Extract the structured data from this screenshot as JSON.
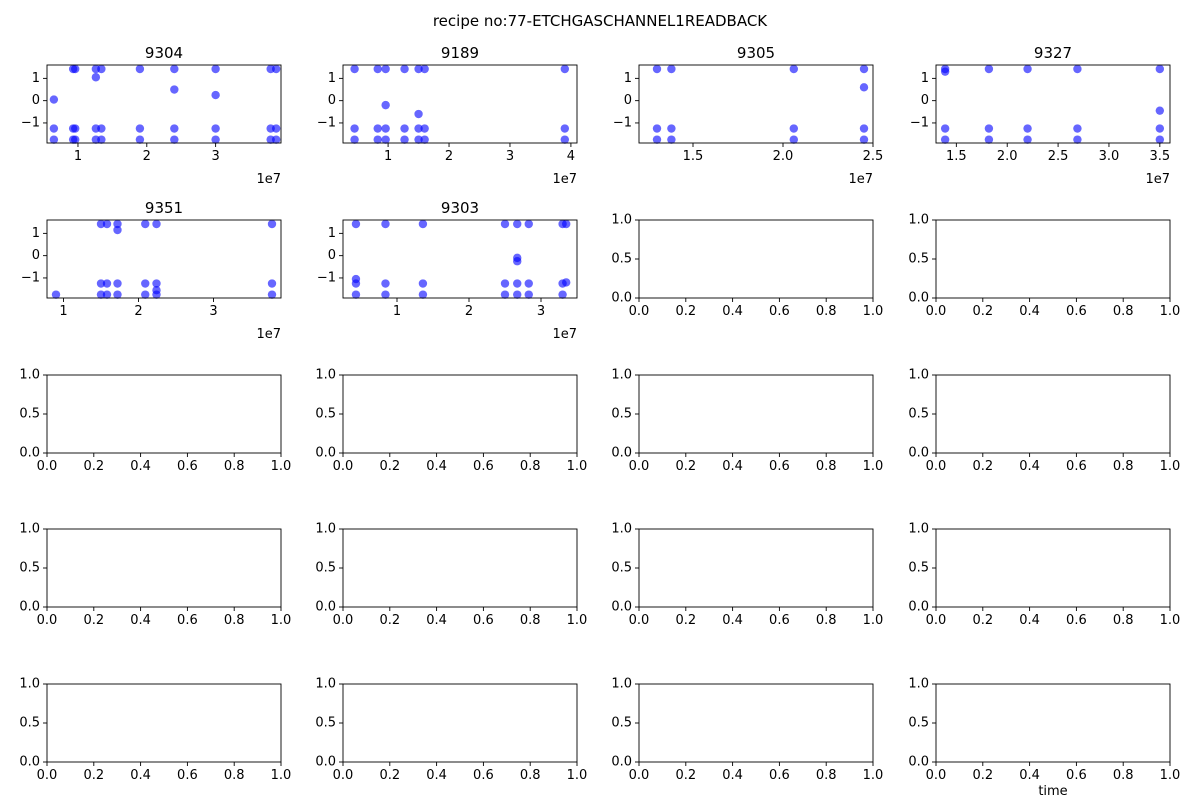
{
  "figure": {
    "title": "recipe no:77-ETCHGASCHANNEL1READBACK",
    "xlabel_last": "time",
    "point_color": "#0000ff"
  },
  "chart_data": [
    {
      "type": "scatter",
      "title": "9304",
      "xlim": [
        5500000,
        39500000
      ],
      "ylim": [
        -1.9,
        1.6
      ],
      "xticks": [
        10000000,
        20000000,
        30000000
      ],
      "xticklabels": [
        "1",
        "2",
        "3"
      ],
      "offset_label": "1e7",
      "yticks": [
        1,
        0,
        -1
      ],
      "yticklabels": [
        "1",
        "0",
        "−1"
      ],
      "x": [
        6500000,
        6500000,
        6500000,
        9300000,
        9300000,
        9300000,
        9600000,
        9600000,
        9600000,
        12600000,
        12600000,
        12600000,
        12600000,
        13400000,
        13400000,
        13400000,
        19000000,
        19000000,
        19000000,
        24000000,
        24000000,
        24000000,
        24000000,
        30000000,
        30000000,
        30000000,
        30000000,
        38000000,
        38000000,
        38000000,
        38800000,
        38800000,
        38800000
      ],
      "y": [
        -1.75,
        -1.25,
        0.05,
        -1.75,
        -1.25,
        1.42,
        -1.75,
        -1.25,
        1.42,
        -1.75,
        -1.25,
        1.42,
        1.05,
        -1.75,
        -1.25,
        1.42,
        -1.75,
        -1.25,
        1.42,
        -1.75,
        -1.25,
        1.42,
        0.5,
        -1.75,
        -1.25,
        1.42,
        0.25,
        -1.75,
        -1.25,
        1.42,
        -1.75,
        -1.25,
        1.42
      ]
    },
    {
      "type": "scatter",
      "title": "9189",
      "xlim": [
        2600000,
        41000000
      ],
      "ylim": [
        -1.9,
        1.6
      ],
      "xticks": [
        10000000,
        20000000,
        30000000,
        40000000
      ],
      "xticklabels": [
        "1",
        "2",
        "3",
        "4"
      ],
      "offset_label": "1e7",
      "yticks": [
        1,
        0,
        -1
      ],
      "yticklabels": [
        "1",
        "0",
        "−1"
      ],
      "x": [
        4500000,
        4500000,
        4500000,
        8300000,
        8300000,
        8300000,
        9600000,
        9600000,
        9600000,
        9600000,
        12700000,
        12700000,
        12700000,
        15000000,
        15000000,
        15000000,
        15000000,
        16000000,
        16000000,
        16000000,
        39000000,
        39000000,
        39000000
      ],
      "y": [
        -1.75,
        -1.25,
        1.42,
        -1.75,
        -1.25,
        1.42,
        -1.75,
        -1.25,
        1.42,
        -0.2,
        -1.75,
        -1.25,
        1.42,
        -1.75,
        -1.25,
        1.42,
        -0.6,
        -1.75,
        -1.25,
        1.42,
        -1.75,
        -1.25,
        1.42
      ]
    },
    {
      "type": "scatter",
      "title": "9305",
      "xlim": [
        12000000,
        25000000
      ],
      "ylim": [
        -1.9,
        1.6
      ],
      "xticks": [
        15000000,
        20000000,
        25000000
      ],
      "xticklabels": [
        "1.5",
        "2.0",
        "2.5"
      ],
      "offset_label": "1e7",
      "yticks": [
        1,
        0,
        -1
      ],
      "yticklabels": [
        "1",
        "0",
        "−1"
      ],
      "x": [
        13000000,
        13000000,
        13000000,
        13800000,
        13800000,
        13800000,
        20600000,
        20600000,
        20600000,
        24500000,
        24500000,
        24500000,
        24500000
      ],
      "y": [
        -1.75,
        -1.25,
        1.42,
        -1.75,
        -1.25,
        1.42,
        -1.75,
        -1.25,
        1.42,
        -1.75,
        -1.25,
        1.42,
        0.6
      ]
    },
    {
      "type": "scatter",
      "title": "9327",
      "xlim": [
        13000000,
        36000000
      ],
      "ylim": [
        -1.9,
        1.6
      ],
      "xticks": [
        15000000,
        20000000,
        25000000,
        30000000,
        35000000
      ],
      "xticklabels": [
        "1.5",
        "2.0",
        "2.5",
        "3.0",
        "3.5"
      ],
      "offset_label": "1e7",
      "yticks": [
        1,
        0,
        -1
      ],
      "yticklabels": [
        "1",
        "0",
        "−1"
      ],
      "x": [
        13900000,
        13900000,
        13900000,
        13900000,
        18200000,
        18200000,
        18200000,
        22000000,
        22000000,
        22000000,
        26900000,
        26900000,
        26900000,
        35000000,
        35000000,
        35000000,
        35000000
      ],
      "y": [
        -1.75,
        -1.25,
        1.42,
        1.3,
        -1.75,
        -1.25,
        1.42,
        -1.75,
        -1.25,
        1.42,
        -1.75,
        -1.25,
        1.42,
        -1.75,
        -1.25,
        1.42,
        -0.45
      ]
    },
    {
      "type": "scatter",
      "title": "9351",
      "xlim": [
        7800000,
        39000000
      ],
      "ylim": [
        -1.9,
        1.6
      ],
      "xticks": [
        10000000,
        20000000,
        30000000
      ],
      "xticklabels": [
        "1",
        "2",
        "3"
      ],
      "offset_label": "1e7",
      "yticks": [
        1,
        0,
        -1
      ],
      "yticklabels": [
        "1",
        "0",
        "−1"
      ],
      "x": [
        9000000,
        15000000,
        15000000,
        15000000,
        15800000,
        15800000,
        15800000,
        17200000,
        17200000,
        17200000,
        17200000,
        20900000,
        20900000,
        20900000,
        22400000,
        22400000,
        22400000,
        22400000,
        37800000,
        37800000,
        37800000
      ],
      "y": [
        -1.75,
        -1.75,
        -1.25,
        1.42,
        -1.75,
        -1.25,
        1.42,
        -1.75,
        -1.25,
        1.42,
        1.15,
        -1.75,
        -1.25,
        1.42,
        -1.75,
        -1.25,
        1.42,
        -1.55,
        -1.75,
        -1.25,
        1.42
      ]
    },
    {
      "type": "scatter",
      "title": "9303",
      "xlim": [
        2500000,
        35000000
      ],
      "ylim": [
        -1.9,
        1.6
      ],
      "xticks": [
        10000000,
        20000000,
        30000000
      ],
      "xticklabels": [
        "1",
        "2",
        "3"
      ],
      "offset_label": "1e7",
      "yticks": [
        1,
        0,
        -1
      ],
      "yticklabels": [
        "1",
        "0",
        "−1"
      ],
      "x": [
        4300000,
        4300000,
        4300000,
        4300000,
        8400000,
        8400000,
        8400000,
        13600000,
        13600000,
        13600000,
        25000000,
        25000000,
        25000000,
        26700000,
        26700000,
        26700000,
        26700000,
        26700000,
        28300000,
        28300000,
        28300000,
        33000000,
        33000000,
        33000000,
        33500000,
        33500000
      ],
      "y": [
        -1.75,
        -1.25,
        -1.05,
        1.42,
        -1.75,
        -1.25,
        1.42,
        -1.75,
        -1.25,
        1.42,
        -1.75,
        -1.25,
        1.42,
        -1.75,
        -1.25,
        -0.1,
        -0.25,
        1.42,
        -1.75,
        -1.25,
        1.42,
        -1.75,
        -1.25,
        1.42,
        -1.2,
        1.42
      ]
    },
    {
      "type": "scatter",
      "x": [],
      "y": [],
      "xlim": [
        0,
        1
      ],
      "ylim": [
        0,
        1
      ],
      "xticks": [
        0,
        0.2,
        0.4,
        0.6,
        0.8,
        1
      ],
      "xticklabels": [
        "0.0",
        "0.2",
        "0.4",
        "0.6",
        "0.8",
        "1.0"
      ],
      "yticks": [
        0,
        0.5,
        1
      ],
      "yticklabels": [
        "0.0",
        "0.5",
        "1.0"
      ]
    },
    {
      "type": "scatter",
      "x": [],
      "y": [],
      "xlim": [
        0,
        1
      ],
      "ylim": [
        0,
        1
      ],
      "xticks": [
        0,
        0.2,
        0.4,
        0.6,
        0.8,
        1
      ],
      "xticklabels": [
        "0.0",
        "0.2",
        "0.4",
        "0.6",
        "0.8",
        "1.0"
      ],
      "yticks": [
        0,
        0.5,
        1
      ],
      "yticklabels": [
        "0.0",
        "0.5",
        "1.0"
      ]
    },
    {
      "type": "scatter",
      "x": [],
      "y": [],
      "xlim": [
        0,
        1
      ],
      "ylim": [
        0,
        1
      ],
      "xticks": [
        0,
        0.2,
        0.4,
        0.6,
        0.8,
        1
      ],
      "xticklabels": [
        "0.0",
        "0.2",
        "0.4",
        "0.6",
        "0.8",
        "1.0"
      ],
      "yticks": [
        0,
        0.5,
        1
      ],
      "yticklabels": [
        "0.0",
        "0.5",
        "1.0"
      ]
    },
    {
      "type": "scatter",
      "x": [],
      "y": [],
      "xlim": [
        0,
        1
      ],
      "ylim": [
        0,
        1
      ],
      "xticks": [
        0,
        0.2,
        0.4,
        0.6,
        0.8,
        1
      ],
      "xticklabels": [
        "0.0",
        "0.2",
        "0.4",
        "0.6",
        "0.8",
        "1.0"
      ],
      "yticks": [
        0,
        0.5,
        1
      ],
      "yticklabels": [
        "0.0",
        "0.5",
        "1.0"
      ]
    },
    {
      "type": "scatter",
      "x": [],
      "y": [],
      "xlim": [
        0,
        1
      ],
      "ylim": [
        0,
        1
      ],
      "xticks": [
        0,
        0.2,
        0.4,
        0.6,
        0.8,
        1
      ],
      "xticklabels": [
        "0.0",
        "0.2",
        "0.4",
        "0.6",
        "0.8",
        "1.0"
      ],
      "yticks": [
        0,
        0.5,
        1
      ],
      "yticklabels": [
        "0.0",
        "0.5",
        "1.0"
      ]
    },
    {
      "type": "scatter",
      "x": [],
      "y": [],
      "xlim": [
        0,
        1
      ],
      "ylim": [
        0,
        1
      ],
      "xticks": [
        0,
        0.2,
        0.4,
        0.6,
        0.8,
        1
      ],
      "xticklabels": [
        "0.0",
        "0.2",
        "0.4",
        "0.6",
        "0.8",
        "1.0"
      ],
      "yticks": [
        0,
        0.5,
        1
      ],
      "yticklabels": [
        "0.0",
        "0.5",
        "1.0"
      ]
    },
    {
      "type": "scatter",
      "x": [],
      "y": [],
      "xlim": [
        0,
        1
      ],
      "ylim": [
        0,
        1
      ],
      "xticks": [
        0,
        0.2,
        0.4,
        0.6,
        0.8,
        1
      ],
      "xticklabels": [
        "0.0",
        "0.2",
        "0.4",
        "0.6",
        "0.8",
        "1.0"
      ],
      "yticks": [
        0,
        0.5,
        1
      ],
      "yticklabels": [
        "0.0",
        "0.5",
        "1.0"
      ]
    },
    {
      "type": "scatter",
      "x": [],
      "y": [],
      "xlim": [
        0,
        1
      ],
      "ylim": [
        0,
        1
      ],
      "xticks": [
        0,
        0.2,
        0.4,
        0.6,
        0.8,
        1
      ],
      "xticklabels": [
        "0.0",
        "0.2",
        "0.4",
        "0.6",
        "0.8",
        "1.0"
      ],
      "yticks": [
        0,
        0.5,
        1
      ],
      "yticklabels": [
        "0.0",
        "0.5",
        "1.0"
      ]
    },
    {
      "type": "scatter",
      "x": [],
      "y": [],
      "xlim": [
        0,
        1
      ],
      "ylim": [
        0,
        1
      ],
      "xticks": [
        0,
        0.2,
        0.4,
        0.6,
        0.8,
        1
      ],
      "xticklabels": [
        "0.0",
        "0.2",
        "0.4",
        "0.6",
        "0.8",
        "1.0"
      ],
      "yticks": [
        0,
        0.5,
        1
      ],
      "yticklabels": [
        "0.0",
        "0.5",
        "1.0"
      ]
    },
    {
      "type": "scatter",
      "x": [],
      "y": [],
      "xlim": [
        0,
        1
      ],
      "ylim": [
        0,
        1
      ],
      "xticks": [
        0,
        0.2,
        0.4,
        0.6,
        0.8,
        1
      ],
      "xticklabels": [
        "0.0",
        "0.2",
        "0.4",
        "0.6",
        "0.8",
        "1.0"
      ],
      "yticks": [
        0,
        0.5,
        1
      ],
      "yticklabels": [
        "0.0",
        "0.5",
        "1.0"
      ]
    },
    {
      "type": "scatter",
      "x": [],
      "y": [],
      "xlim": [
        0,
        1
      ],
      "ylim": [
        0,
        1
      ],
      "xticks": [
        0,
        0.2,
        0.4,
        0.6,
        0.8,
        1
      ],
      "xticklabels": [
        "0.0",
        "0.2",
        "0.4",
        "0.6",
        "0.8",
        "1.0"
      ],
      "yticks": [
        0,
        0.5,
        1
      ],
      "yticklabels": [
        "0.0",
        "0.5",
        "1.0"
      ]
    },
    {
      "type": "scatter",
      "x": [],
      "y": [],
      "xlim": [
        0,
        1
      ],
      "ylim": [
        0,
        1
      ],
      "xticks": [
        0,
        0.2,
        0.4,
        0.6,
        0.8,
        1
      ],
      "xticklabels": [
        "0.0",
        "0.2",
        "0.4",
        "0.6",
        "0.8",
        "1.0"
      ],
      "yticks": [
        0,
        0.5,
        1
      ],
      "yticklabels": [
        "0.0",
        "0.5",
        "1.0"
      ]
    },
    {
      "type": "scatter",
      "x": [],
      "y": [],
      "xlim": [
        0,
        1
      ],
      "ylim": [
        0,
        1
      ],
      "xticks": [
        0,
        0.2,
        0.4,
        0.6,
        0.8,
        1
      ],
      "xticklabels": [
        "0.0",
        "0.2",
        "0.4",
        "0.6",
        "0.8",
        "1.0"
      ],
      "yticks": [
        0,
        0.5,
        1
      ],
      "yticklabels": [
        "0.0",
        "0.5",
        "1.0"
      ]
    },
    {
      "type": "scatter",
      "x": [],
      "y": [],
      "xlim": [
        0,
        1
      ],
      "ylim": [
        0,
        1
      ],
      "xticks": [
        0,
        0.2,
        0.4,
        0.6,
        0.8,
        1
      ],
      "xticklabels": [
        "0.0",
        "0.2",
        "0.4",
        "0.6",
        "0.8",
        "1.0"
      ],
      "yticks": [
        0,
        0.5,
        1
      ],
      "yticklabels": [
        "0.0",
        "0.5",
        "1.0"
      ]
    }
  ]
}
